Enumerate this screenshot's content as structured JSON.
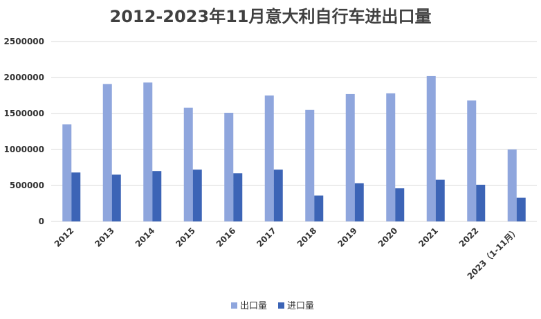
{
  "chart_data": {
    "type": "bar",
    "title": "2012-2023年11月意大利自行车进出口量",
    "categories": [
      "2012",
      "2013",
      "2014",
      "2015",
      "2016",
      "2017",
      "2018",
      "2019",
      "2020",
      "2021",
      "2022",
      "2023（1-11月）"
    ],
    "series": [
      {
        "name": "出口量",
        "color": "#8FA6DD",
        "values": [
          1350000,
          1910000,
          1930000,
          1580000,
          1510000,
          1750000,
          1550000,
          1770000,
          1780000,
          2020000,
          1680000,
          1000000
        ]
      },
      {
        "name": "进口量",
        "color": "#3C64B6",
        "values": [
          680000,
          650000,
          700000,
          720000,
          670000,
          720000,
          360000,
          530000,
          460000,
          580000,
          510000,
          330000
        ]
      }
    ],
    "yticks": [
      "0",
      "500000",
      "1000000",
      "1500000",
      "2000000",
      "2500000"
    ],
    "ylim": [
      0,
      2500000
    ],
    "grid": true,
    "legend_position": "bottom"
  }
}
